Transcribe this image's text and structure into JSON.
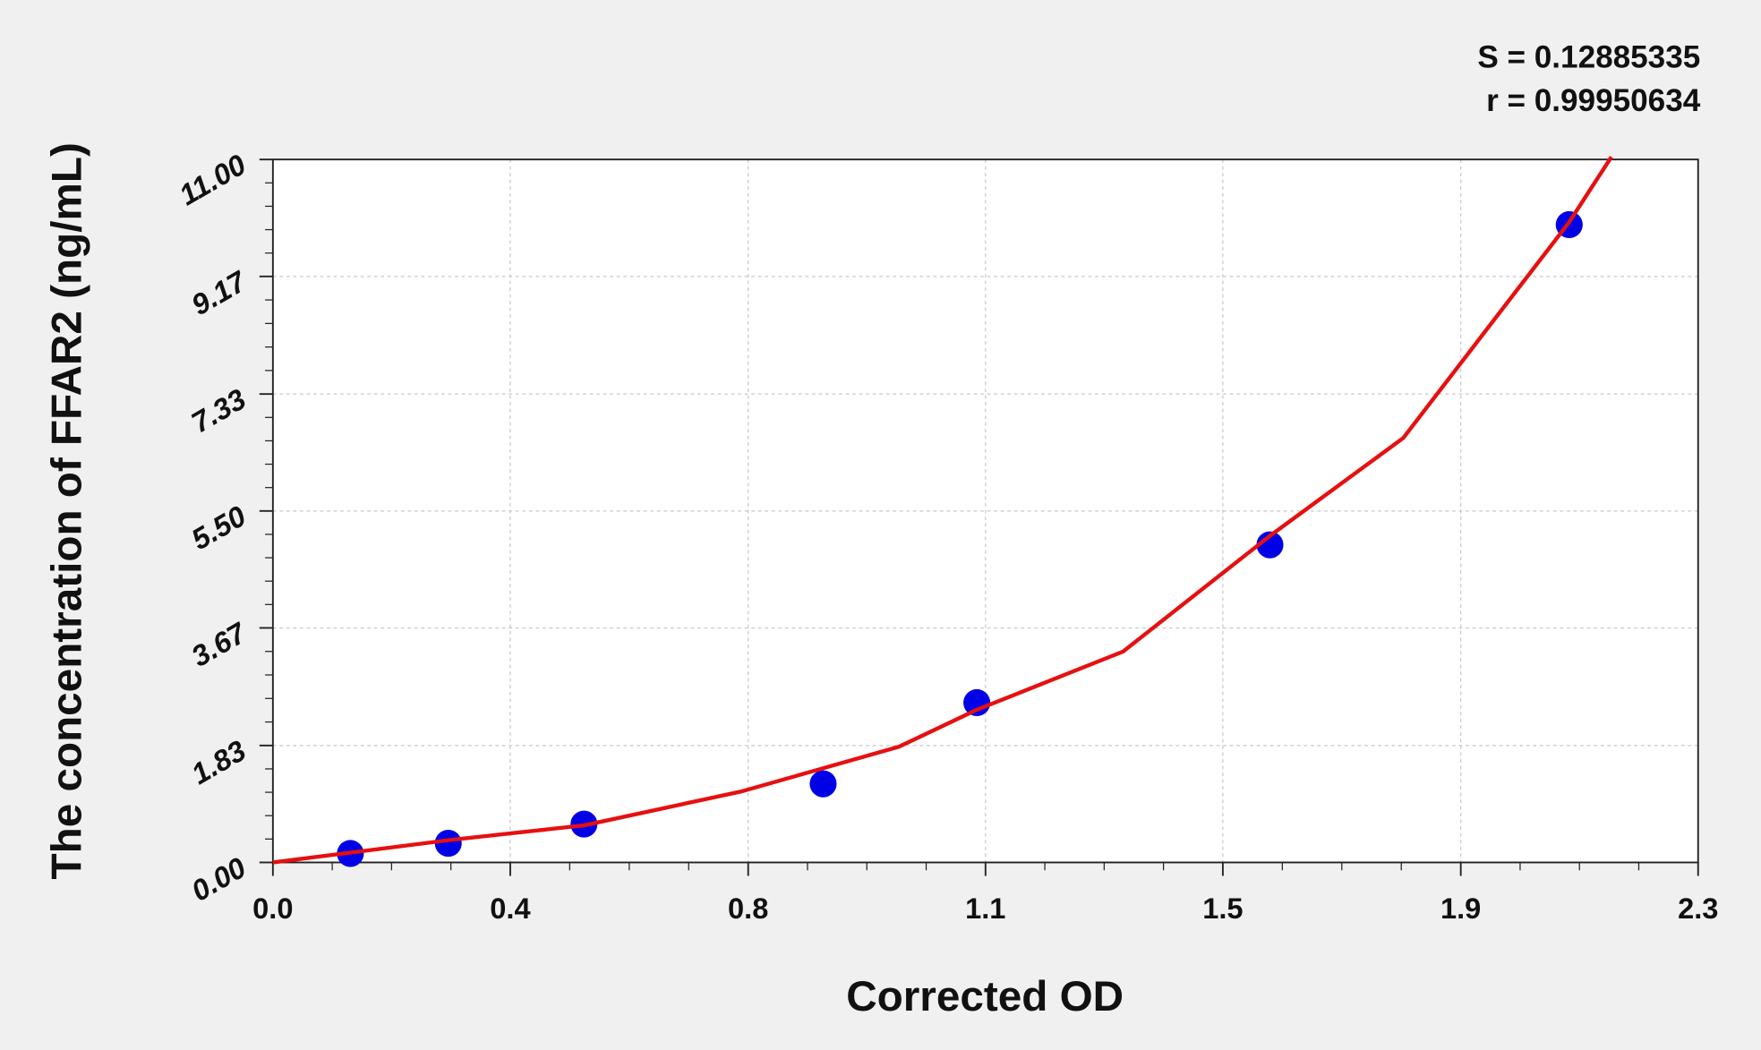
{
  "chart_data": {
    "type": "scatter",
    "xlabel": "Corrected OD",
    "ylabel": "The concentration of FFAR2 (ng/mL)",
    "annotations": [
      "S = 0.12885335",
      "r = 0.99950634"
    ],
    "x": [
      0.125,
      0.283,
      0.502,
      0.888,
      1.136,
      1.609,
      2.092
    ],
    "values": [
      0.14,
      0.3,
      0.6,
      1.23,
      2.5,
      4.97,
      9.98
    ],
    "color": "#0000e6",
    "curve": {
      "color": "#e61010",
      "x": [
        0,
        0.285,
        0.502,
        0.756,
        1.01,
        1.136,
        1.372,
        1.609,
        1.824,
        2.092,
        2.16
      ],
      "values": [
        0,
        0.35,
        0.58,
        1.11,
        1.81,
        2.39,
        3.3,
        5.11,
        6.64,
        10.02,
        11.04
      ]
    },
    "xlim": [
      0,
      2.3
    ],
    "xticks": [
      {
        "value": 0,
        "label": "0.0"
      },
      {
        "value": 0.383,
        "label": "0.4"
      },
      {
        "value": 0.767,
        "label": "0.8"
      },
      {
        "value": 1.15,
        "label": "1.1"
      },
      {
        "value": 1.533,
        "label": "1.5"
      },
      {
        "value": 1.917,
        "label": "1.9"
      },
      2.3
    ],
    "ylim": [
      0,
      11
    ],
    "yticks": [
      {
        "value": 0,
        "label": "0.00"
      },
      1.83,
      3.67,
      {
        "value": 5.5,
        "label": "5.50"
      },
      7.33,
      9.17,
      {
        "value": 11,
        "label": "11.00"
      }
    ],
    "grid": true
  }
}
